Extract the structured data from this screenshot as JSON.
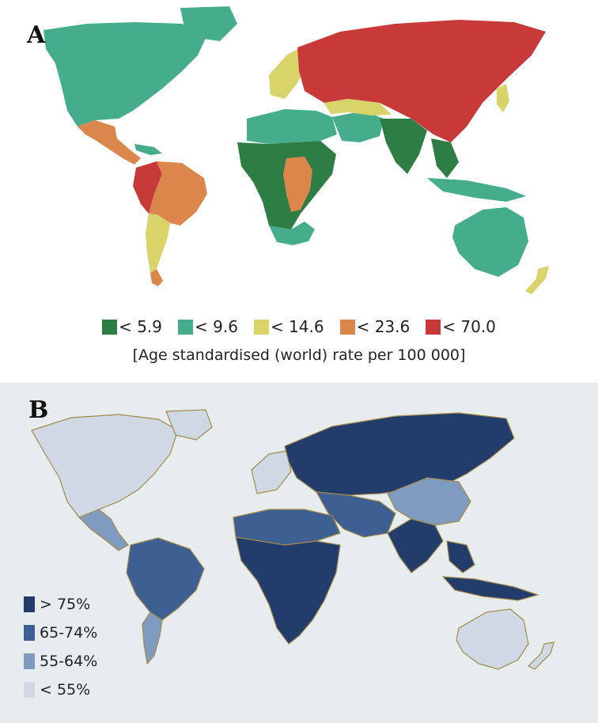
{
  "panel_a": {
    "letter": "A",
    "legend": [
      {
        "label": "< 5.9",
        "color": "#2d7d44"
      },
      {
        "label": "< 9.6",
        "color": "#46ad8c"
      },
      {
        "label": "< 14.6",
        "color": "#d9d46a"
      },
      {
        "label": "< 23.6",
        "color": "#db874b"
      },
      {
        "label": "< 70.0",
        "color": "#c83a3a"
      }
    ],
    "caption": "[Age standardised (world) rate per 100 000]"
  },
  "panel_b": {
    "letter": "B",
    "legend": [
      {
        "label": "> 75%",
        "color": "#223d6c"
      },
      {
        "label": "65-74%",
        "color": "#3e5f92"
      },
      {
        "label": "55-64%",
        "color": "#7f9bbf"
      },
      {
        "label": "< 55%",
        "color": "#cfd8e4"
      }
    ]
  }
}
